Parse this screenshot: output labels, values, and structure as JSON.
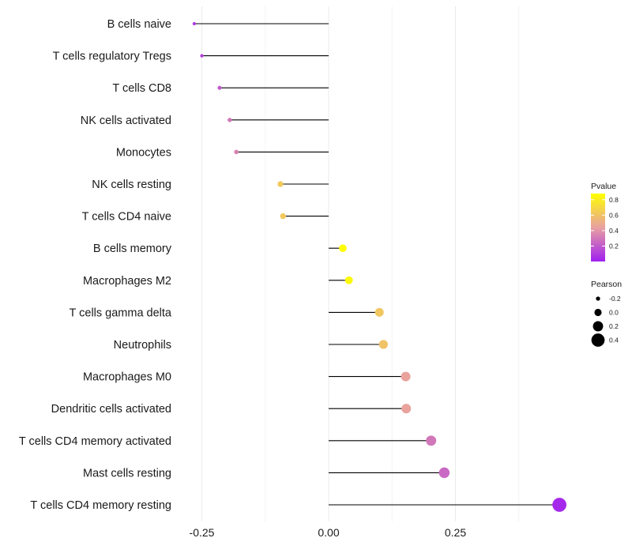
{
  "chart_data": {
    "type": "lollipop",
    "title": "",
    "xlabel": "",
    "ylabel": "",
    "xlim": [
      -0.28,
      0.47
    ],
    "grid": true,
    "x_ticks": [
      -0.25,
      0.0,
      0.25
    ],
    "x_tick_labels": [
      "-0.25",
      "0.00",
      "0.25"
    ],
    "categories": [
      "B cells naive",
      "T cells regulatory  Tregs",
      "T cells CD8",
      "NK cells activated",
      "Monocytes",
      "NK cells resting",
      "T cells CD4 naive",
      "B cells memory",
      "Macrophages M2",
      "T cells gamma delta",
      "Neutrophils",
      "Macrophages M0",
      "Dendritic cells activated",
      "T cells CD4 memory activated",
      "Mast cells resting",
      "T cells CD4 memory resting"
    ],
    "pearson": [
      -0.265,
      -0.25,
      -0.215,
      -0.195,
      -0.182,
      -0.095,
      -0.09,
      0.028,
      0.04,
      0.1,
      0.108,
      0.152,
      0.153,
      0.202,
      0.228,
      0.455
    ],
    "pvalue": [
      0.08,
      0.12,
      0.2,
      0.3,
      0.34,
      0.63,
      0.63,
      0.88,
      0.85,
      0.62,
      0.6,
      0.45,
      0.45,
      0.3,
      0.25,
      0.03
    ],
    "legend": {
      "color_title": "Pvalue",
      "color_ticks": [
        0.2,
        0.4,
        0.6,
        0.8
      ],
      "color_tick_labels": [
        "0.2",
        "0.4",
        "0.6",
        "0.8"
      ],
      "color_range": [
        0.0,
        0.88
      ],
      "size_title": "Pearson",
      "size_values": [
        -0.2,
        0.0,
        0.2,
        0.4
      ],
      "size_labels": [
        "-0.2",
        "0.0",
        "0.2",
        "0.4"
      ],
      "placement": "right"
    },
    "colors": {
      "low": "#a020f0",
      "mid": "#e8a0a0",
      "high": "#ffff00",
      "segment": "#000000",
      "grid": "#ebebeb"
    }
  }
}
